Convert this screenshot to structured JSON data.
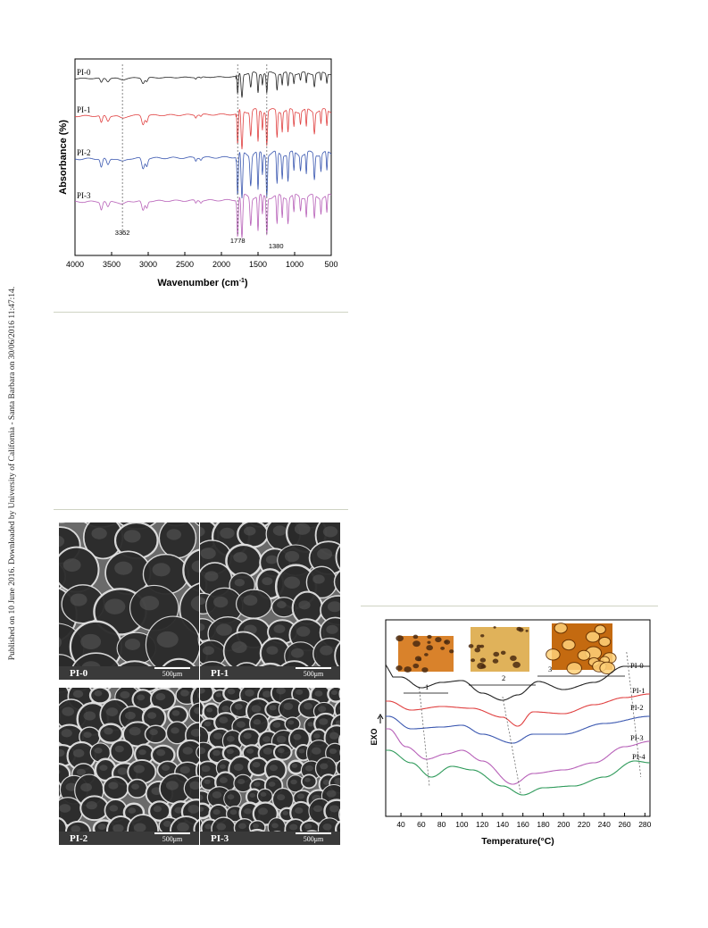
{
  "side_note": "Published on 10 June 2016. Downloaded by University of California - Santa Barbara on 30/06/2016 11:47:14.",
  "ftir_chart": {
    "type": "line",
    "xlabel": "Wavenumber (cm",
    "xlabel_sup": "-1",
    "xlabel_end": ")",
    "ylabel": "Absorbance (%)",
    "xlim": [
      4000,
      500
    ],
    "x_ticks": [
      "4000",
      "3500",
      "3000",
      "2500",
      "2000",
      "1500",
      "1000",
      "500"
    ],
    "series": [
      {
        "name": "PI-0",
        "color": "#222222"
      },
      {
        "name": "PI-1",
        "color": "#e04040"
      },
      {
        "name": "PI-2",
        "color": "#3a57b0"
      },
      {
        "name": "PI-3",
        "color": "#b760b8"
      }
    ],
    "annotations": [
      {
        "label": "3352",
        "x": 3352
      },
      {
        "label": "1778",
        "x": 1778
      },
      {
        "label": "1380",
        "x": 1380
      }
    ]
  },
  "sem_panels": [
    {
      "label": "PI-0",
      "scale": "500μm"
    },
    {
      "label": "PI-1",
      "scale": "500μm"
    },
    {
      "label": "PI-2",
      "scale": "500μm"
    },
    {
      "label": "PI-3",
      "scale": "500μm"
    }
  ],
  "dsc_chart": {
    "type": "line",
    "xlabel": "Temperature(°C)",
    "ylabel": "EXO",
    "xlim": [
      25,
      285
    ],
    "x_ticks": [
      "40",
      "60",
      "80",
      "100",
      "120",
      "140",
      "160",
      "180",
      "200",
      "220",
      "240",
      "260",
      "280"
    ],
    "series": [
      {
        "name": "PI-0",
        "color": "#222222"
      },
      {
        "name": "PI-1",
        "color": "#e04040"
      },
      {
        "name": "PI-2",
        "color": "#3a57b0"
      },
      {
        "name": "PI-3",
        "color": "#b760b8"
      },
      {
        "name": "PI-4",
        "color": "#2e9a5a"
      }
    ],
    "regions": [
      "1",
      "2",
      "3"
    ]
  }
}
